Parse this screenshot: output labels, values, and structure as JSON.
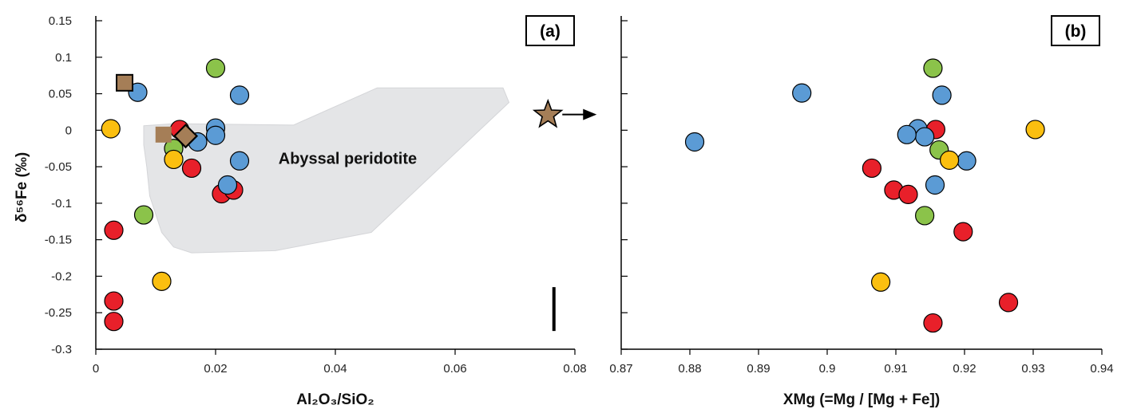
{
  "colors": {
    "red": "#e8202a",
    "blue": "#5b9bd5",
    "green": "#8bc34a",
    "yellow": "#fbbf10",
    "brown": "#a57e57",
    "region": "#e4e5e7"
  },
  "chart_data": [
    {
      "panel_label": "(a)",
      "type": "scatter",
      "xlabel": "Al₂O₃/SiO₂",
      "ylabel": "δ⁵⁶Fe (‰)",
      "xlim": [
        0,
        0.08
      ],
      "ylim": [
        -0.3,
        0.15
      ],
      "xticks": [
        0,
        0.02,
        0.04,
        0.06,
        0.08
      ],
      "xtick_labels": [
        "0",
        "0.02",
        "0.04",
        "0.06",
        "0.08"
      ],
      "yticks": [
        0.15,
        0.1,
        0.05,
        0,
        -0.05,
        -0.1,
        -0.15,
        -0.2,
        -0.25,
        -0.3
      ],
      "ytick_labels": [
        "0.15",
        "0.1",
        "0.05",
        "0",
        "-0.05",
        "-0.1",
        "-0.15",
        "-0.2",
        "-0.25",
        "-0.3"
      ],
      "region_label": "Abyssal peridotite",
      "region_polygon": [
        [
          0.008,
          0.006
        ],
        [
          0.013,
          0.009
        ],
        [
          0.033,
          0.007
        ],
        [
          0.047,
          0.058
        ],
        [
          0.068,
          0.058
        ],
        [
          0.069,
          0.038
        ],
        [
          0.046,
          -0.14
        ],
        [
          0.03,
          -0.165
        ],
        [
          0.016,
          -0.168
        ],
        [
          0.013,
          -0.16
        ],
        [
          0.011,
          -0.14
        ],
        [
          0.009,
          -0.09
        ],
        [
          0.0085,
          -0.05
        ],
        [
          0.008,
          -0.02
        ]
      ],
      "error_bar": {
        "x": 0.0765,
        "y_low": -0.275,
        "y_high": -0.215
      },
      "series": [
        {
          "color": "red",
          "marker": "circle",
          "points": [
            [
              0.003,
              -0.137
            ],
            [
              0.003,
              -0.234
            ],
            [
              0.003,
              -0.262
            ],
            [
              0.014,
              0.001
            ],
            [
              0.016,
              -0.052
            ],
            [
              0.021,
              -0.087
            ],
            [
              0.023,
              -0.082
            ]
          ]
        },
        {
          "color": "blue",
          "marker": "circle",
          "points": [
            [
              0.007,
              0.052
            ],
            [
              0.017,
              -0.016
            ],
            [
              0.02,
              0.003
            ],
            [
              0.02,
              -0.007
            ],
            [
              0.022,
              -0.075
            ],
            [
              0.024,
              0.048
            ],
            [
              0.024,
              -0.042
            ]
          ]
        },
        {
          "color": "green",
          "marker": "circle",
          "points": [
            [
              0.02,
              0.085
            ],
            [
              0.013,
              -0.025
            ],
            [
              0.008,
              -0.116
            ]
          ]
        },
        {
          "color": "yellow",
          "marker": "circle",
          "points": [
            [
              0.0025,
              0.002
            ],
            [
              0.013,
              -0.04
            ],
            [
              0.011,
              -0.207
            ]
          ]
        },
        {
          "color": "brown",
          "marker": "square",
          "points": [
            [
              0.0048,
              0.065
            ]
          ]
        },
        {
          "color": "brown",
          "marker": "square-plain",
          "points": [
            [
              0.0113,
              -0.006
            ]
          ]
        },
        {
          "color": "brown",
          "marker": "diamond",
          "points": [
            [
              0.015,
              -0.008
            ]
          ]
        },
        {
          "color": "brown",
          "marker": "star",
          "points": [
            [
              0.0755,
              0.021
            ]
          ]
        }
      ]
    },
    {
      "panel_label": "(b)",
      "type": "scatter",
      "xlabel": "XMg (=Mg / [Mg + Fe])",
      "ylabel": "",
      "xlim": [
        0.87,
        0.94
      ],
      "ylim": [
        -0.3,
        0.15
      ],
      "xticks": [
        0.87,
        0.88,
        0.89,
        0.9,
        0.91,
        0.92,
        0.93,
        0.94
      ],
      "xtick_labels": [
        "0.87",
        "0.88",
        "0.89",
        "0.9",
        "0.91",
        "0.92",
        "0.93",
        "0.94"
      ],
      "series": [
        {
          "color": "red",
          "marker": "circle",
          "points": [
            [
              0.9158,
              0.001
            ],
            [
              0.9065,
              -0.052
            ],
            [
              0.9097,
              -0.082
            ],
            [
              0.9118,
              -0.088
            ],
            [
              0.9198,
              -0.139
            ],
            [
              0.9264,
              -0.236
            ],
            [
              0.9154,
              -0.264
            ]
          ]
        },
        {
          "color": "blue",
          "marker": "circle",
          "points": [
            [
              0.8963,
              0.051
            ],
            [
              0.8807,
              -0.016
            ],
            [
              0.9132,
              0.002
            ],
            [
              0.9142,
              -0.009
            ],
            [
              0.9116,
              -0.006
            ],
            [
              0.9203,
              -0.042
            ],
            [
              0.9157,
              -0.075
            ],
            [
              0.9167,
              0.048
            ]
          ]
        },
        {
          "color": "green",
          "marker": "circle",
          "points": [
            [
              0.9154,
              0.085
            ],
            [
              0.9163,
              -0.027
            ],
            [
              0.9142,
              -0.117
            ]
          ]
        },
        {
          "color": "yellow",
          "marker": "circle",
          "points": [
            [
              0.9303,
              0.001
            ],
            [
              0.9178,
              -0.041
            ],
            [
              0.9078,
              -0.208
            ]
          ]
        }
      ]
    }
  ]
}
